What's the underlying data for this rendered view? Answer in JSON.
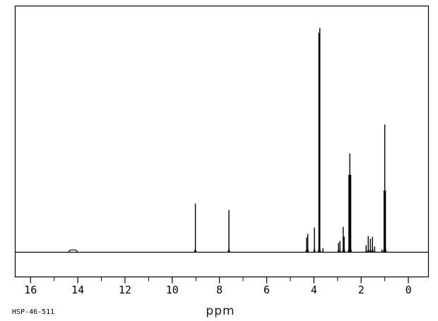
{
  "page": {
    "background_color": "#ffffff",
    "line_color": "#000000"
  },
  "footer": {
    "spectrum_id": "HSP-46-511"
  },
  "chart_data": {
    "type": "line",
    "title": "",
    "xlabel": "ppm",
    "ylabel": "",
    "x_axis": {
      "unit": "ppm",
      "min_ppm": -0.85,
      "max_ppm": 16.65,
      "direction": "reversed",
      "major_tick_ppm": [
        16,
        14,
        12,
        10,
        8,
        6,
        4,
        2,
        0
      ],
      "major_tick_labels": [
        "16",
        "14",
        "12",
        "10",
        "8",
        "6",
        "4",
        "2",
        "0"
      ],
      "minor_tick_ppm": [
        15,
        13,
        11,
        9,
        7,
        5,
        3,
        1
      ]
    },
    "y_axis": {
      "visible": false,
      "intensity_scale": "relative, tallest peak = 1.0"
    },
    "grid": false,
    "legend": false,
    "peaks": [
      {
        "ppm": 14.2,
        "intensity": 0.01,
        "shape": "broad",
        "width_ppm": 0.42
      },
      {
        "ppm": 9.02,
        "intensity": 0.217,
        "shape": "sharp"
      },
      {
        "ppm": 7.6,
        "intensity": 0.188,
        "shape": "sharp"
      },
      {
        "ppm": 4.31,
        "intensity": 0.066,
        "shape": "sharp"
      },
      {
        "ppm": 4.26,
        "intensity": 0.082,
        "shape": "sharp"
      },
      {
        "ppm": 3.98,
        "intensity": 0.11,
        "shape": "sharp"
      },
      {
        "ppm": 3.79,
        "intensity": 0.978,
        "shape": "sharp"
      },
      {
        "ppm": 3.75,
        "intensity": 1.0,
        "shape": "sharp"
      },
      {
        "ppm": 3.62,
        "intensity": 0.018,
        "shape": "sharp"
      },
      {
        "ppm": 2.96,
        "intensity": 0.041,
        "shape": "sharp"
      },
      {
        "ppm": 2.9,
        "intensity": 0.05,
        "shape": "sharp"
      },
      {
        "ppm": 2.76,
        "intensity": 0.113,
        "shape": "sharp"
      },
      {
        "ppm": 2.72,
        "intensity": 0.069,
        "shape": "sharp"
      },
      {
        "ppm": 2.52,
        "intensity": 0.345,
        "shape": "sharp"
      },
      {
        "ppm": 2.48,
        "intensity": 0.44,
        "shape": "sharp"
      },
      {
        "ppm": 2.44,
        "intensity": 0.345,
        "shape": "sharp"
      },
      {
        "ppm": 1.79,
        "intensity": 0.031,
        "shape": "sharp"
      },
      {
        "ppm": 1.7,
        "intensity": 0.072,
        "shape": "sharp"
      },
      {
        "ppm": 1.61,
        "intensity": 0.06,
        "shape": "sharp"
      },
      {
        "ppm": 1.52,
        "intensity": 0.069,
        "shape": "sharp"
      },
      {
        "ppm": 1.43,
        "intensity": 0.025,
        "shape": "sharp"
      },
      {
        "ppm": 1.12,
        "intensity": 0.012,
        "shape": "sharp"
      },
      {
        "ppm": 1.03,
        "intensity": 0.275,
        "shape": "sharp"
      },
      {
        "ppm": 1.0,
        "intensity": 0.569,
        "shape": "sharp"
      },
      {
        "ppm": 0.97,
        "intensity": 0.275,
        "shape": "sharp"
      }
    ]
  }
}
